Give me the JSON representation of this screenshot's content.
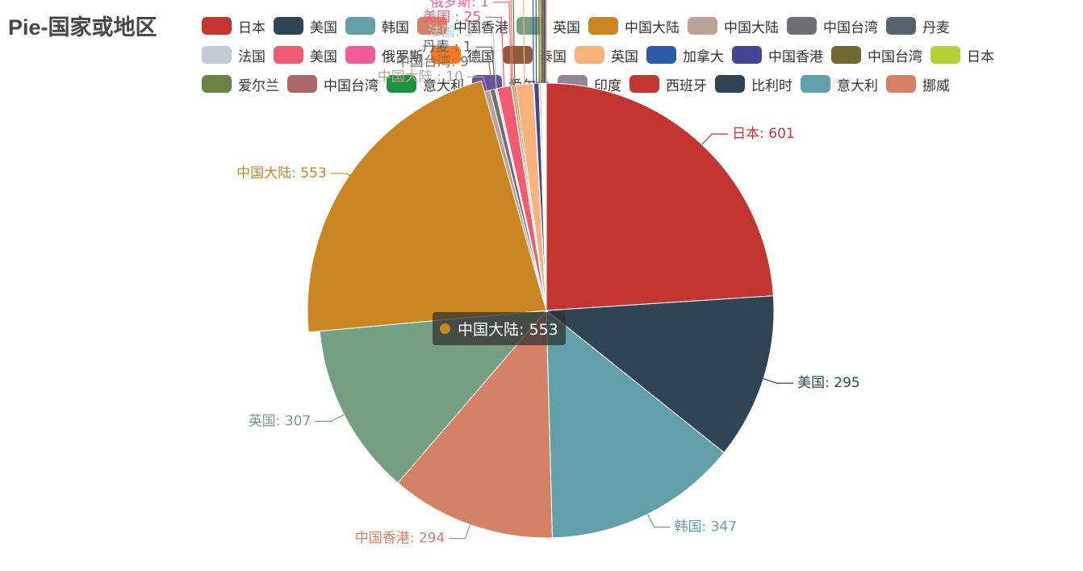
{
  "title": "Pie-国家或地区",
  "legend": {
    "rows": [
      [
        {
          "label": "日本",
          "color": "#c23531"
        },
        {
          "label": "美国",
          "color": "#2f4554"
        },
        {
          "label": "韩国",
          "color": "#61a0a8"
        },
        {
          "label": "中国香港",
          "color": "#d48265"
        },
        {
          "label": "英国",
          "color": "#749f83"
        },
        {
          "label": "中国大陆",
          "color": "#ca8622"
        },
        {
          "label": "中国大陆",
          "color": "#bda29a"
        },
        {
          "label": "中国台湾",
          "color": "#6e7074"
        },
        {
          "label": "丹麦",
          "color": "#546570"
        }
      ],
      [
        {
          "label": "法国",
          "color": "#c4ccd3"
        },
        {
          "label": "美国",
          "color": "#f05b72"
        },
        {
          "label": "俄罗斯",
          "color": "#ef5b9c"
        },
        {
          "label": "德国",
          "color": "#f47920"
        },
        {
          "label": "泰国",
          "color": "#905a3d"
        },
        {
          "label": "英国",
          "color": "#fab27b"
        },
        {
          "label": "加拿大",
          "color": "#2a5caa"
        },
        {
          "label": "中国香港",
          "color": "#444693"
        },
        {
          "label": "中国台湾",
          "color": "#726930"
        },
        {
          "label": "日本",
          "color": "#b2d235"
        }
      ],
      [
        {
          "label": "爱尔兰",
          "color": "#6d8346"
        },
        {
          "label": "中国台湾",
          "color": "#ac6767"
        },
        {
          "label": "意大利",
          "color": "#1d953f"
        },
        {
          "label": "爱尔兰",
          "color": "#6950a1"
        },
        {
          "label": "印度",
          "color": "#918597"
        },
        {
          "label": "西班牙",
          "color": "#c23531"
        },
        {
          "label": "比利时",
          "color": "#2f4554"
        },
        {
          "label": "意大利",
          "color": "#61a0a8"
        },
        {
          "label": "挪威",
          "color": "#d48265"
        }
      ]
    ]
  },
  "chart_data": {
    "type": "pie",
    "slices": [
      {
        "name": "日本",
        "value": 601,
        "color": "#c23531",
        "label": "日本: 601"
      },
      {
        "name": "美国",
        "value": 295,
        "color": "#2f4554",
        "label": "美国: 295"
      },
      {
        "name": "韩国",
        "value": 347,
        "color": "#61a0a8",
        "label": "韩国: 347"
      },
      {
        "name": "中国香港",
        "value": 294,
        "color": "#d48265",
        "label": "中国香港: 294"
      },
      {
        "name": "英国",
        "value": 307,
        "color": "#749f83",
        "label": "英国: 307"
      },
      {
        "name": "中国大陆",
        "value": 553,
        "color": "#ca8622",
        "label": "中国大陆: 553"
      },
      {
        "name": "中国大陆",
        "value": 10,
        "color": "#bda29a",
        "label": "中国大陆 : 10"
      },
      {
        "name": "中国台湾",
        "value": 9,
        "color": "#6e7074",
        "label": "中国台湾: 9"
      },
      {
        "name": "丹麦",
        "value": 1,
        "color": "#546570",
        "label": "丹麦 : 1"
      },
      {
        "name": "法国",
        "value": 3,
        "color": "#c4ccd3",
        "label": "法国: 3"
      },
      {
        "name": "美国",
        "value": 25,
        "color": "#f05b72",
        "label": "美国 : 25"
      },
      {
        "name": "俄罗斯",
        "value": 1,
        "color": "#ef5b9c",
        "label": "俄罗斯: 1"
      },
      {
        "name": "德国",
        "value": 4,
        "color": "#f47920",
        "label": "德国: 4"
      },
      {
        "name": "泰国",
        "value": 3,
        "color": "#905a3d",
        "label": "泰国: 3"
      },
      {
        "name": "英国",
        "value": 31,
        "color": "#fab27b",
        "label": "英国 : 31"
      },
      {
        "name": "加拿大",
        "value": 1,
        "color": "#2a5caa",
        "label": "加拿大: 1"
      },
      {
        "name": "中国香港",
        "value": 9,
        "color": "#444693",
        "label": "中国香港"
      },
      {
        "name": "中国台湾",
        "value": 1,
        "color": "#726930",
        "label": "中国台湾 : 1"
      },
      {
        "name": "日本",
        "value": 3,
        "color": "#b2d235",
        "label": "日本"
      },
      {
        "name": "爱尔兰",
        "value": 1,
        "color": "#6d8346",
        "label": "爱尔兰: 1"
      },
      {
        "name": "中国台湾",
        "value": 1,
        "color": "#ac6767",
        "label": "中国台湾"
      },
      {
        "name": "意大利",
        "value": 1,
        "color": "#1d953f",
        "label": "意大利"
      },
      {
        "name": "爱尔兰",
        "value": 1,
        "color": "#6950a1",
        "label": "爱尔兰"
      },
      {
        "name": "印度",
        "value": 1,
        "color": "#918597",
        "label": "印度"
      },
      {
        "name": "西班牙",
        "value": 1,
        "color": "#c23531",
        "label": "西班牙"
      },
      {
        "name": "比利时",
        "value": 1,
        "color": "#2f4554",
        "label": "比利时"
      },
      {
        "name": "意大利",
        "value": 1,
        "color": "#61a0a8",
        "label": "意大利"
      },
      {
        "name": "挪威",
        "value": 1,
        "color": "#d48265",
        "label": "挪威"
      }
    ],
    "legend_position": "top"
  },
  "tooltip": {
    "text": "中国大陆: 553",
    "color": "#ca8622"
  }
}
